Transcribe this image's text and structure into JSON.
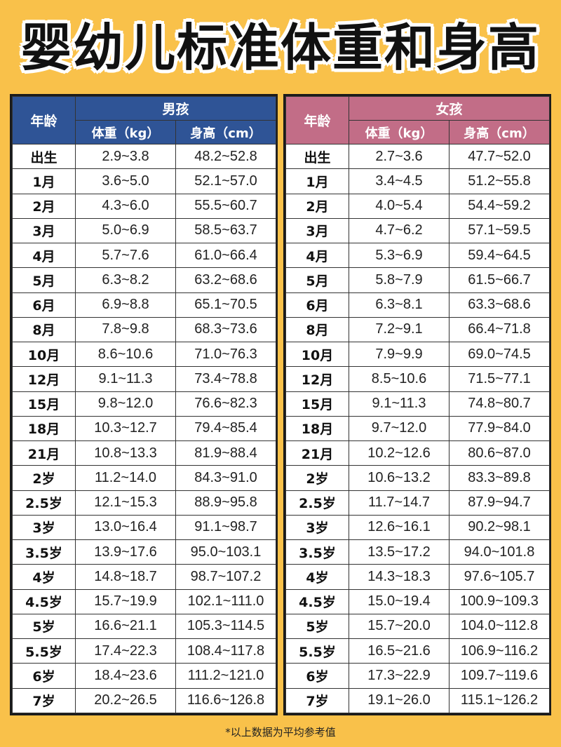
{
  "title": "婴幼儿标准体重和身高",
  "colors": {
    "background": "#f9c14a",
    "boys_header": "#2f5496",
    "girls_header": "#c26d87"
  },
  "headers": {
    "age": "年龄",
    "weight": "体重（kg）",
    "height": "身高（cm）"
  },
  "boys": {
    "label": "男孩",
    "rows": [
      {
        "age": "出生",
        "weight": "2.9~3.8",
        "height": "48.2~52.8"
      },
      {
        "age": "1月",
        "weight": "3.6~5.0",
        "height": "52.1~57.0"
      },
      {
        "age": "2月",
        "weight": "4.3~6.0",
        "height": "55.5~60.7"
      },
      {
        "age": "3月",
        "weight": "5.0~6.9",
        "height": "58.5~63.7"
      },
      {
        "age": "4月",
        "weight": "5.7~7.6",
        "height": "61.0~66.4"
      },
      {
        "age": "5月",
        "weight": "6.3~8.2",
        "height": "63.2~68.6"
      },
      {
        "age": "6月",
        "weight": "6.9~8.8",
        "height": "65.1~70.5"
      },
      {
        "age": "8月",
        "weight": "7.8~9.8",
        "height": "68.3~73.6"
      },
      {
        "age": "10月",
        "weight": "8.6~10.6",
        "height": "71.0~76.3"
      },
      {
        "age": "12月",
        "weight": "9.1~11.3",
        "height": "73.4~78.8"
      },
      {
        "age": "15月",
        "weight": "9.8~12.0",
        "height": "76.6~82.3"
      },
      {
        "age": "18月",
        "weight": "10.3~12.7",
        "height": "79.4~85.4"
      },
      {
        "age": "21月",
        "weight": "10.8~13.3",
        "height": "81.9~88.4"
      },
      {
        "age": "2岁",
        "weight": "11.2~14.0",
        "height": "84.3~91.0"
      },
      {
        "age": "2.5岁",
        "weight": "12.1~15.3",
        "height": "88.9~95.8"
      },
      {
        "age": "3岁",
        "weight": "13.0~16.4",
        "height": "91.1~98.7"
      },
      {
        "age": "3.5岁",
        "weight": "13.9~17.6",
        "height": "95.0~103.1"
      },
      {
        "age": "4岁",
        "weight": "14.8~18.7",
        "height": "98.7~107.2"
      },
      {
        "age": "4.5岁",
        "weight": "15.7~19.9",
        "height": "102.1~111.0"
      },
      {
        "age": "5岁",
        "weight": "16.6~21.1",
        "height": "105.3~114.5"
      },
      {
        "age": "5.5岁",
        "weight": "17.4~22.3",
        "height": "108.4~117.8"
      },
      {
        "age": "6岁",
        "weight": "18.4~23.6",
        "height": "111.2~121.0"
      },
      {
        "age": "7岁",
        "weight": "20.2~26.5",
        "height": "116.6~126.8"
      }
    ]
  },
  "girls": {
    "label": "女孩",
    "rows": [
      {
        "age": "出生",
        "weight": "2.7~3.6",
        "height": "47.7~52.0"
      },
      {
        "age": "1月",
        "weight": "3.4~4.5",
        "height": "51.2~55.8"
      },
      {
        "age": "2月",
        "weight": "4.0~5.4",
        "height": "54.4~59.2"
      },
      {
        "age": "3月",
        "weight": "4.7~6.2",
        "height": "57.1~59.5"
      },
      {
        "age": "4月",
        "weight": "5.3~6.9",
        "height": "59.4~64.5"
      },
      {
        "age": "5月",
        "weight": "5.8~7.9",
        "height": "61.5~66.7"
      },
      {
        "age": "6月",
        "weight": "6.3~8.1",
        "height": "63.3~68.6"
      },
      {
        "age": "8月",
        "weight": "7.2~9.1",
        "height": "66.4~71.8"
      },
      {
        "age": "10月",
        "weight": "7.9~9.9",
        "height": "69.0~74.5"
      },
      {
        "age": "12月",
        "weight": "8.5~10.6",
        "height": "71.5~77.1"
      },
      {
        "age": "15月",
        "weight": "9.1~11.3",
        "height": "74.8~80.7"
      },
      {
        "age": "18月",
        "weight": "9.7~12.0",
        "height": "77.9~84.0"
      },
      {
        "age": "21月",
        "weight": "10.2~12.6",
        "height": "80.6~87.0"
      },
      {
        "age": "2岁",
        "weight": "10.6~13.2",
        "height": "83.3~89.8"
      },
      {
        "age": "2.5岁",
        "weight": "11.7~14.7",
        "height": "87.9~94.7"
      },
      {
        "age": "3岁",
        "weight": "12.6~16.1",
        "height": "90.2~98.1"
      },
      {
        "age": "3.5岁",
        "weight": "13.5~17.2",
        "height": "94.0~101.8"
      },
      {
        "age": "4岁",
        "weight": "14.3~18.3",
        "height": "97.6~105.7"
      },
      {
        "age": "4.5岁",
        "weight": "15.0~19.4",
        "height": "100.9~109.3"
      },
      {
        "age": "5岁",
        "weight": "15.7~20.0",
        "height": "104.0~112.8"
      },
      {
        "age": "5.5岁",
        "weight": "16.5~21.6",
        "height": "106.9~116.2"
      },
      {
        "age": "6岁",
        "weight": "17.3~22.9",
        "height": "109.7~119.6"
      },
      {
        "age": "7岁",
        "weight": "19.1~26.0",
        "height": "115.1~126.2"
      }
    ]
  },
  "note": "*以上数据为平均参考值"
}
